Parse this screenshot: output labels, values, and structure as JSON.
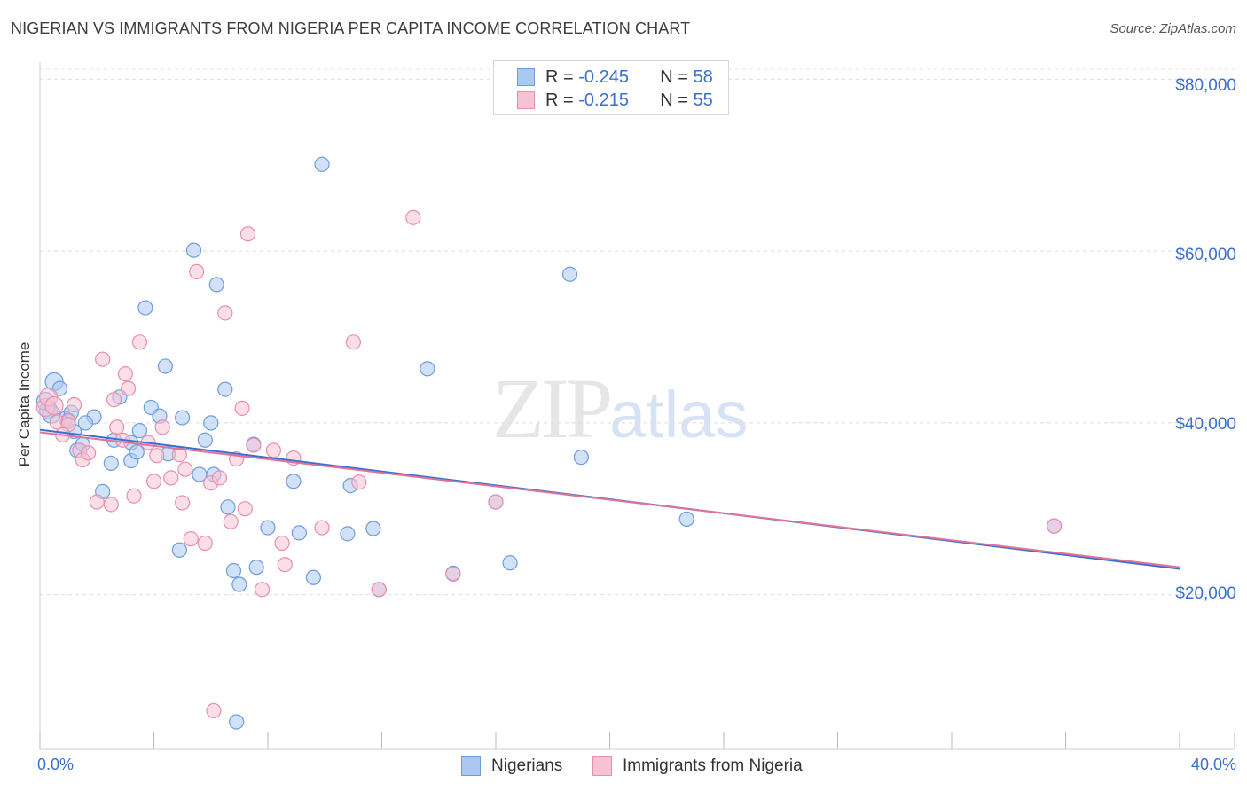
{
  "title": "NIGERIAN VS IMMIGRANTS FROM NIGERIA PER CAPITA INCOME CORRELATION CHART",
  "source": "Source: ZipAtlas.com",
  "watermark": {
    "zip": "ZIP",
    "atlas": "atlas"
  },
  "legend": {
    "r_label": "R =",
    "n_label": "N =",
    "rows": [
      {
        "r": "-0.245",
        "n": "58",
        "color": "#aac8f2",
        "border": "#6f9ce0"
      },
      {
        "r": "-0.215",
        "n": "55",
        "color": "#f7c3d3",
        "border": "#e98fac"
      }
    ]
  },
  "bottom_legend": [
    {
      "label": "Nigerians",
      "color": "#aac8f2",
      "border": "#6f9ce0"
    },
    {
      "label": "Immigrants from Nigeria",
      "color": "#f7c3d3",
      "border": "#e98fac"
    }
  ],
  "chart_data": {
    "type": "scatter",
    "title": "NIGERIAN VS IMMIGRANTS FROM NIGERIA PER CAPITA INCOME CORRELATION CHART",
    "xlabel": "",
    "ylabel": "Per Capita Income",
    "xlim": [
      0,
      40
    ],
    "ylim": [
      2000,
      82000
    ],
    "x_tick_labels": {
      "left": "0.0%",
      "right": "40.0%"
    },
    "y_ticks": [
      {
        "value": 20000,
        "label": "$20,000"
      },
      {
        "value": 40000,
        "label": "$40,000"
      },
      {
        "value": 60000,
        "label": "$60,000"
      },
      {
        "value": 80000,
        "label": "$80,000"
      }
    ],
    "grid": true,
    "series": [
      {
        "name": "Nigerians",
        "color": "#aac8f2",
        "edge": "#6f9ce0",
        "trend": {
          "x": [
            0,
            40
          ],
          "y": [
            39200,
            23000
          ],
          "color": "#3a6fd0"
        },
        "points": [
          [
            0.3,
            41500
          ],
          [
            0.5,
            44800
          ],
          [
            0.7,
            44000
          ],
          [
            0.9,
            40500
          ],
          [
            1.0,
            40300
          ],
          [
            1.1,
            41200
          ],
          [
            1.2,
            39000
          ],
          [
            1.3,
            36800
          ],
          [
            1.5,
            37500
          ],
          [
            1.9,
            40700
          ],
          [
            2.2,
            32000
          ],
          [
            2.5,
            35300
          ],
          [
            2.6,
            38000
          ],
          [
            2.8,
            43000
          ],
          [
            3.2,
            37700
          ],
          [
            3.2,
            35600
          ],
          [
            3.4,
            36600
          ],
          [
            3.5,
            39100
          ],
          [
            3.7,
            53400
          ],
          [
            3.9,
            41800
          ],
          [
            4.2,
            40800
          ],
          [
            4.4,
            46600
          ],
          [
            4.5,
            36400
          ],
          [
            4.9,
            25200
          ],
          [
            5.0,
            40600
          ],
          [
            5.4,
            60100
          ],
          [
            5.6,
            34000
          ],
          [
            5.8,
            38000
          ],
          [
            6.0,
            40000
          ],
          [
            6.1,
            34000
          ],
          [
            6.2,
            56100
          ],
          [
            6.5,
            43900
          ],
          [
            6.6,
            30200
          ],
          [
            6.8,
            22800
          ],
          [
            6.9,
            5200
          ],
          [
            7.0,
            21200
          ],
          [
            7.5,
            37500
          ],
          [
            7.6,
            23200
          ],
          [
            8.0,
            27800
          ],
          [
            8.9,
            33200
          ],
          [
            9.1,
            27200
          ],
          [
            9.6,
            22000
          ],
          [
            9.9,
            70100
          ],
          [
            10.8,
            27100
          ],
          [
            10.9,
            32700
          ],
          [
            11.7,
            27700
          ],
          [
            11.9,
            20600
          ],
          [
            13.6,
            46300
          ],
          [
            14.5,
            22500
          ],
          [
            16.0,
            30800
          ],
          [
            16.5,
            23700
          ],
          [
            18.6,
            57300
          ],
          [
            19.0,
            36000
          ],
          [
            22.7,
            28800
          ],
          [
            35.6,
            28000
          ],
          [
            0.2,
            42500
          ],
          [
            0.4,
            41000
          ],
          [
            1.6,
            40000
          ]
        ]
      },
      {
        "name": "Immigrants from Nigeria",
        "color": "#f7c3d3",
        "edge": "#e98fac",
        "trend": {
          "x": [
            0,
            40
          ],
          "y": [
            38900,
            23200
          ],
          "color": "#e0739a"
        },
        "points": [
          [
            0.2,
            41800
          ],
          [
            0.3,
            43000
          ],
          [
            0.5,
            42000
          ],
          [
            0.6,
            40100
          ],
          [
            1.0,
            40200
          ],
          [
            1.2,
            42100
          ],
          [
            1.4,
            36800
          ],
          [
            1.5,
            35700
          ],
          [
            1.7,
            36500
          ],
          [
            2.0,
            30800
          ],
          [
            2.2,
            47400
          ],
          [
            2.5,
            30500
          ],
          [
            2.6,
            42700
          ],
          [
            2.7,
            39500
          ],
          [
            3.0,
            45700
          ],
          [
            3.1,
            44000
          ],
          [
            3.3,
            31500
          ],
          [
            3.5,
            49400
          ],
          [
            3.8,
            37700
          ],
          [
            4.0,
            33200
          ],
          [
            4.1,
            36200
          ],
          [
            4.3,
            39500
          ],
          [
            4.6,
            33600
          ],
          [
            4.9,
            36300
          ],
          [
            5.0,
            30700
          ],
          [
            5.1,
            34600
          ],
          [
            5.3,
            26500
          ],
          [
            5.5,
            57600
          ],
          [
            5.8,
            26000
          ],
          [
            6.0,
            33000
          ],
          [
            6.1,
            6500
          ],
          [
            6.3,
            33600
          ],
          [
            6.5,
            52800
          ],
          [
            6.7,
            28500
          ],
          [
            6.9,
            35800
          ],
          [
            7.1,
            41700
          ],
          [
            7.2,
            30000
          ],
          [
            7.3,
            62000
          ],
          [
            7.5,
            37400
          ],
          [
            7.8,
            20600
          ],
          [
            8.2,
            36800
          ],
          [
            8.5,
            26000
          ],
          [
            8.6,
            23500
          ],
          [
            8.9,
            35900
          ],
          [
            9.9,
            27800
          ],
          [
            11.0,
            49400
          ],
          [
            11.2,
            33100
          ],
          [
            11.9,
            20600
          ],
          [
            13.1,
            63900
          ],
          [
            14.5,
            22400
          ],
          [
            16.0,
            30800
          ],
          [
            35.6,
            28000
          ],
          [
            1.0,
            39800
          ],
          [
            0.8,
            38600
          ],
          [
            2.9,
            38000
          ]
        ]
      }
    ]
  }
}
